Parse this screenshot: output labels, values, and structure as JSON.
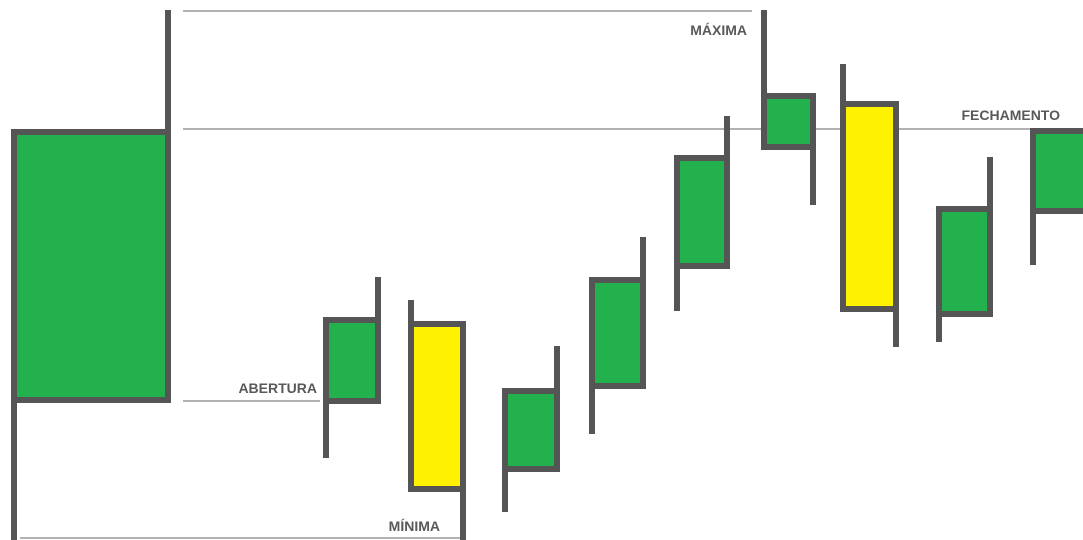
{
  "labels": {
    "maxima": "MÁXIMA",
    "fechamento": "FECHAMENTO",
    "abertura": "ABERTURA",
    "minima": "MÍNIMA"
  },
  "colors": {
    "outline": "#555555",
    "bullish_fill": "#22b14c",
    "bearish_fill": "#fff200",
    "reference_line": "#666666",
    "label_text": "#595959"
  }
}
